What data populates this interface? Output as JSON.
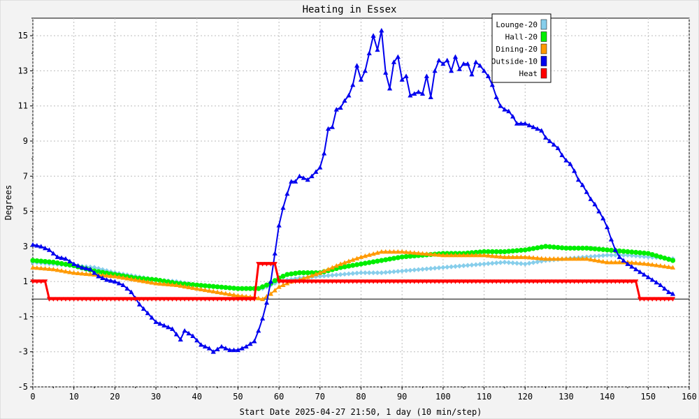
{
  "chart_data": {
    "type": "line",
    "title": "Heating in Essex",
    "xlabel": "Start Date 2025-04-27 21:50, 1 day (10 min/step)",
    "ylabel": "Degrees",
    "xlim": [
      0,
      160
    ],
    "ylim": [
      -5,
      16
    ],
    "x_ticks": [
      0,
      10,
      20,
      30,
      40,
      50,
      60,
      70,
      80,
      90,
      100,
      110,
      120,
      130,
      140,
      150,
      160
    ],
    "y_ticks": [
      -5,
      -3,
      -1,
      1,
      3,
      5,
      7,
      9,
      11,
      13,
      15
    ],
    "grid": true,
    "legend_position": "top-right",
    "series": [
      {
        "name": "Lounge-20",
        "color": "#87ceeb",
        "marker": "diamond",
        "points": [
          [
            0,
            2.1
          ],
          [
            5,
            2.0
          ],
          [
            10,
            1.9
          ],
          [
            15,
            1.8
          ],
          [
            20,
            1.5
          ],
          [
            25,
            1.3
          ],
          [
            30,
            1.1
          ],
          [
            35,
            1.0
          ],
          [
            40,
            0.8
          ],
          [
            45,
            0.7
          ],
          [
            50,
            0.6
          ],
          [
            54,
            0.6
          ],
          [
            56,
            0.6
          ],
          [
            58,
            0.8
          ],
          [
            60,
            1.0
          ],
          [
            65,
            1.2
          ],
          [
            70,
            1.3
          ],
          [
            75,
            1.4
          ],
          [
            80,
            1.5
          ],
          [
            85,
            1.5
          ],
          [
            90,
            1.6
          ],
          [
            95,
            1.7
          ],
          [
            100,
            1.8
          ],
          [
            105,
            1.9
          ],
          [
            110,
            2.0
          ],
          [
            115,
            2.1
          ],
          [
            120,
            2.0
          ],
          [
            125,
            2.2
          ],
          [
            130,
            2.3
          ],
          [
            135,
            2.4
          ],
          [
            140,
            2.5
          ],
          [
            145,
            2.5
          ],
          [
            150,
            2.4
          ],
          [
            156,
            2.3
          ]
        ]
      },
      {
        "name": "Hall-20",
        "color": "#00ee00",
        "marker": "circle",
        "points": [
          [
            0,
            2.2
          ],
          [
            5,
            2.1
          ],
          [
            10,
            1.9
          ],
          [
            15,
            1.6
          ],
          [
            20,
            1.4
          ],
          [
            25,
            1.2
          ],
          [
            30,
            1.1
          ],
          [
            35,
            0.9
          ],
          [
            40,
            0.8
          ],
          [
            45,
            0.7
          ],
          [
            50,
            0.6
          ],
          [
            55,
            0.6
          ],
          [
            58,
            0.9
          ],
          [
            60,
            1.2
          ],
          [
            62,
            1.4
          ],
          [
            65,
            1.5
          ],
          [
            70,
            1.5
          ],
          [
            75,
            1.8
          ],
          [
            80,
            2.0
          ],
          [
            85,
            2.2
          ],
          [
            90,
            2.4
          ],
          [
            95,
            2.5
          ],
          [
            100,
            2.6
          ],
          [
            105,
            2.6
          ],
          [
            110,
            2.7
          ],
          [
            115,
            2.7
          ],
          [
            120,
            2.8
          ],
          [
            125,
            3.0
          ],
          [
            130,
            2.9
          ],
          [
            135,
            2.9
          ],
          [
            140,
            2.8
          ],
          [
            145,
            2.7
          ],
          [
            150,
            2.6
          ],
          [
            156,
            2.2
          ]
        ]
      },
      {
        "name": "Dining-20",
        "color": "#ff9900",
        "marker": "triangle",
        "points": [
          [
            0,
            1.8
          ],
          [
            5,
            1.7
          ],
          [
            10,
            1.5
          ],
          [
            15,
            1.4
          ],
          [
            20,
            1.3
          ],
          [
            25,
            1.1
          ],
          [
            30,
            0.9
          ],
          [
            35,
            0.8
          ],
          [
            40,
            0.6
          ],
          [
            45,
            0.4
          ],
          [
            50,
            0.2
          ],
          [
            54,
            0.1
          ],
          [
            56,
            0.0
          ],
          [
            58,
            0.3
          ],
          [
            60,
            0.7
          ],
          [
            63,
            1.0
          ],
          [
            65,
            1.1
          ],
          [
            70,
            1.5
          ],
          [
            75,
            2.0
          ],
          [
            80,
            2.4
          ],
          [
            85,
            2.7
          ],
          [
            90,
            2.7
          ],
          [
            95,
            2.6
          ],
          [
            100,
            2.5
          ],
          [
            105,
            2.5
          ],
          [
            110,
            2.5
          ],
          [
            115,
            2.4
          ],
          [
            120,
            2.4
          ],
          [
            125,
            2.3
          ],
          [
            130,
            2.3
          ],
          [
            135,
            2.3
          ],
          [
            140,
            2.1
          ],
          [
            145,
            2.1
          ],
          [
            150,
            2.0
          ],
          [
            156,
            1.8
          ]
        ]
      },
      {
        "name": "Outside-10",
        "color": "#0000ee",
        "marker": "triangle",
        "points": [
          [
            0,
            3.1
          ],
          [
            2,
            3.0
          ],
          [
            4,
            2.8
          ],
          [
            6,
            2.4
          ],
          [
            8,
            2.3
          ],
          [
            10,
            2.0
          ],
          [
            12,
            1.8
          ],
          [
            14,
            1.7
          ],
          [
            16,
            1.3
          ],
          [
            18,
            1.1
          ],
          [
            20,
            1.0
          ],
          [
            22,
            0.8
          ],
          [
            24,
            0.4
          ],
          [
            26,
            -0.3
          ],
          [
            28,
            -0.8
          ],
          [
            30,
            -1.3
          ],
          [
            32,
            -1.5
          ],
          [
            34,
            -1.7
          ],
          [
            36,
            -2.3
          ],
          [
            37,
            -1.8
          ],
          [
            39,
            -2.1
          ],
          [
            41,
            -2.6
          ],
          [
            43,
            -2.8
          ],
          [
            44,
            -3.0
          ],
          [
            46,
            -2.7
          ],
          [
            48,
            -2.9
          ],
          [
            50,
            -2.9
          ],
          [
            52,
            -2.7
          ],
          [
            54,
            -2.4
          ],
          [
            55,
            -1.8
          ],
          [
            56,
            -1.1
          ],
          [
            57,
            -0.2
          ],
          [
            58,
            1.0
          ],
          [
            59,
            2.6
          ],
          [
            60,
            4.2
          ],
          [
            61,
            5.2
          ],
          [
            62,
            6.0
          ],
          [
            63,
            6.7
          ],
          [
            64,
            6.7
          ],
          [
            65,
            7.0
          ],
          [
            67,
            6.8
          ],
          [
            68,
            7.0
          ],
          [
            70,
            7.5
          ],
          [
            71,
            8.3
          ],
          [
            72,
            9.7
          ],
          [
            73,
            9.8
          ],
          [
            74,
            10.8
          ],
          [
            75,
            10.9
          ],
          [
            76,
            11.3
          ],
          [
            77,
            11.6
          ],
          [
            78,
            12.2
          ],
          [
            79,
            13.3
          ],
          [
            80,
            12.5
          ],
          [
            81,
            13.0
          ],
          [
            82,
            14.0
          ],
          [
            83,
            15.0
          ],
          [
            84,
            14.2
          ],
          [
            85,
            15.3
          ],
          [
            86,
            12.9
          ],
          [
            87,
            12.0
          ],
          [
            88,
            13.5
          ],
          [
            89,
            13.8
          ],
          [
            90,
            12.5
          ],
          [
            91,
            12.7
          ],
          [
            92,
            11.6
          ],
          [
            93,
            11.7
          ],
          [
            94,
            11.8
          ],
          [
            95,
            11.7
          ],
          [
            96,
            12.7
          ],
          [
            97,
            11.5
          ],
          [
            98,
            13.0
          ],
          [
            99,
            13.6
          ],
          [
            100,
            13.4
          ],
          [
            101,
            13.6
          ],
          [
            102,
            13.0
          ],
          [
            103,
            13.8
          ],
          [
            104,
            13.1
          ],
          [
            105,
            13.4
          ],
          [
            106,
            13.4
          ],
          [
            107,
            12.8
          ],
          [
            108,
            13.5
          ],
          [
            109,
            13.3
          ],
          [
            110,
            13.0
          ],
          [
            111,
            12.7
          ],
          [
            112,
            12.2
          ],
          [
            113,
            11.5
          ],
          [
            114,
            11.0
          ],
          [
            115,
            10.8
          ],
          [
            116,
            10.7
          ],
          [
            117,
            10.4
          ],
          [
            118,
            10.0
          ],
          [
            120,
            10.0
          ],
          [
            121,
            9.9
          ],
          [
            122,
            9.8
          ],
          [
            123,
            9.7
          ],
          [
            124,
            9.6
          ],
          [
            125,
            9.2
          ],
          [
            126,
            9.0
          ],
          [
            127,
            8.8
          ],
          [
            128,
            8.6
          ],
          [
            129,
            8.2
          ],
          [
            130,
            7.9
          ],
          [
            131,
            7.7
          ],
          [
            132,
            7.3
          ],
          [
            133,
            6.8
          ],
          [
            134,
            6.5
          ],
          [
            135,
            6.1
          ],
          [
            136,
            5.7
          ],
          [
            137,
            5.4
          ],
          [
            138,
            5.0
          ],
          [
            139,
            4.6
          ],
          [
            140,
            4.1
          ],
          [
            141,
            3.4
          ],
          [
            142,
            2.8
          ],
          [
            143,
            2.4
          ],
          [
            145,
            2.0
          ],
          [
            147,
            1.7
          ],
          [
            149,
            1.4
          ],
          [
            151,
            1.1
          ],
          [
            153,
            0.8
          ],
          [
            155,
            0.4
          ],
          [
            156,
            0.3
          ]
        ]
      },
      {
        "name": "Heat",
        "color": "#ff0000",
        "marker": "triangle-down",
        "points": [
          [
            0,
            1
          ],
          [
            3,
            1
          ],
          [
            4,
            0
          ],
          [
            54,
            0
          ],
          [
            55,
            2
          ],
          [
            59,
            2
          ],
          [
            60,
            1
          ],
          [
            147,
            1
          ],
          [
            148,
            0
          ],
          [
            156,
            0
          ]
        ]
      }
    ]
  }
}
